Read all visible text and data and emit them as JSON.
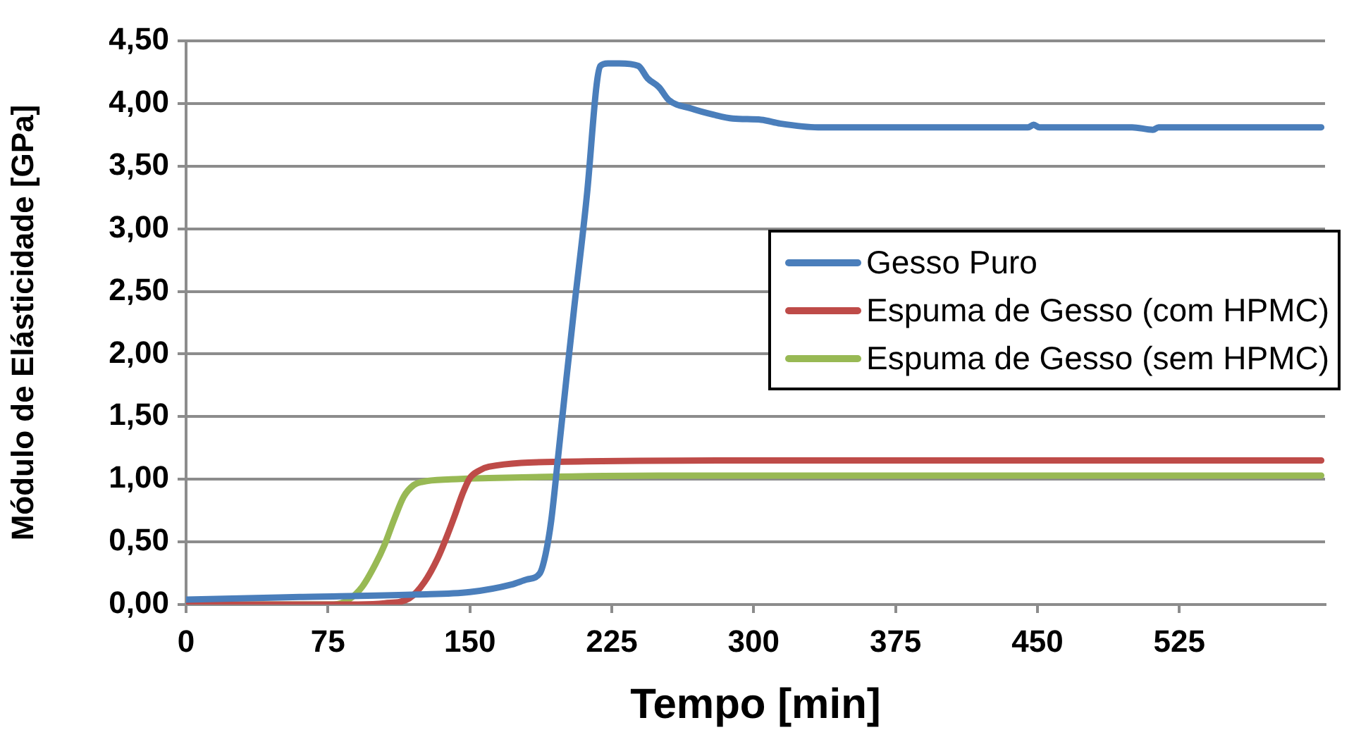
{
  "chart_data": {
    "type": "line",
    "xlabel": "Tempo [min]",
    "ylabel": "Módulo de Elásticidade [GPa]",
    "xlim": [
      0,
      602
    ],
    "xticks": [
      0,
      75,
      150,
      225,
      300,
      375,
      450,
      525
    ],
    "ylim": [
      0,
      4.5
    ],
    "yticks": [
      {
        "value": 0,
        "label": "0,00"
      },
      {
        "value": 0.5,
        "label": "0,50"
      },
      {
        "value": 1,
        "label": "1,00"
      },
      {
        "value": 1.5,
        "label": "1,50"
      },
      {
        "value": 2,
        "label": "2,00"
      },
      {
        "value": 2.5,
        "label": "2,50"
      },
      {
        "value": 3,
        "label": "3,00"
      },
      {
        "value": 3.5,
        "label": "3,50"
      },
      {
        "value": 4,
        "label": "4,00"
      },
      {
        "value": 4.5,
        "label": "4,50"
      }
    ],
    "grid": "y",
    "legend": "right",
    "marker": "none",
    "line_style": "solid",
    "series": [
      {
        "name": "Gesso Puro",
        "color": "#4a7ebb",
        "x": [
          0,
          60,
          122,
          150,
          172,
          180,
          187,
          190,
          193,
          197,
          201,
          205,
          212,
          217,
          219,
          223,
          229,
          239,
          244,
          250,
          255,
          267,
          279,
          289,
          304,
          314,
          334,
          400,
          445,
          448,
          451,
          460,
          500,
          511,
          514,
          560,
          600
        ],
        "values": [
          0.04,
          0.06,
          0.08,
          0.1,
          0.16,
          0.2,
          0.25,
          0.4,
          0.67,
          1.23,
          1.8,
          2.35,
          3.29,
          4.15,
          4.3,
          4.32,
          4.32,
          4.3,
          4.2,
          4.13,
          4.03,
          3.96,
          3.91,
          3.88,
          3.87,
          3.84,
          3.81,
          3.81,
          3.81,
          3.83,
          3.81,
          3.81,
          3.81,
          3.79,
          3.81,
          3.81,
          3.81
        ]
      },
      {
        "name": "Espuma de Gesso (com HPMC)",
        "color": "#be4b48",
        "x": [
          0,
          90,
          105,
          118,
          126,
          133,
          138,
          142,
          146,
          150,
          155,
          160,
          200,
          300,
          450,
          600
        ],
        "values": [
          0,
          0,
          0.01,
          0.05,
          0.18,
          0.37,
          0.55,
          0.71,
          0.88,
          1.01,
          1.07,
          1.1,
          1.14,
          1.15,
          1.15,
          1.15
        ]
      },
      {
        "name": "Espuma de Gesso (sem HPMC)",
        "color": "#98b954",
        "x": [
          0,
          78,
          86,
          93,
          100,
          105,
          110,
          115,
          120,
          125,
          140,
          160,
          250,
          400,
          600
        ],
        "values": [
          0,
          0,
          0.04,
          0.14,
          0.32,
          0.48,
          0.68,
          0.86,
          0.95,
          0.98,
          1.0,
          1.01,
          1.03,
          1.03,
          1.03
        ]
      }
    ]
  }
}
